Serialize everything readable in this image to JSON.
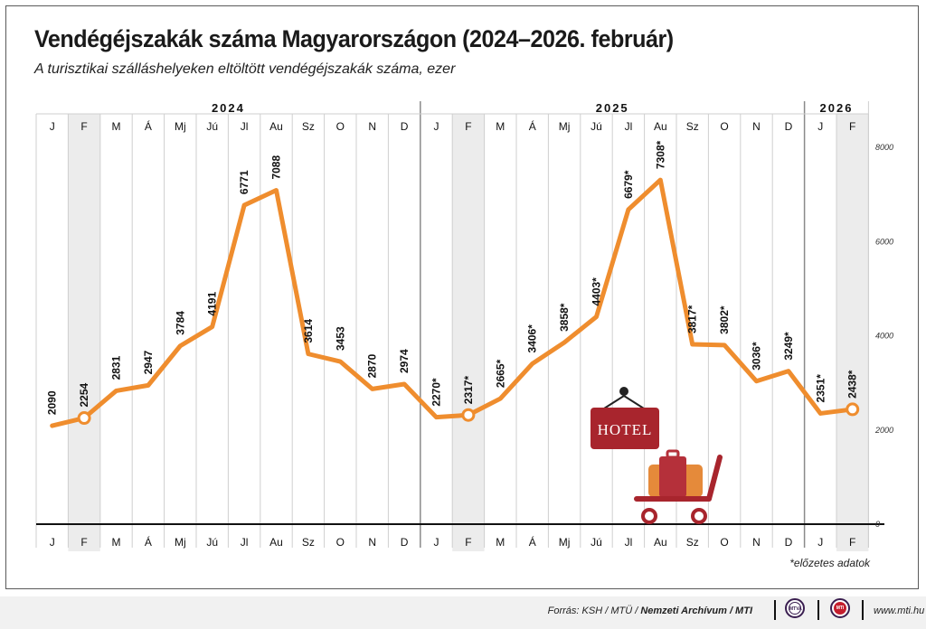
{
  "header": {
    "title": "Vendégéjszakák száma Magyarországon (2024–2026. február)",
    "subtitle": "A turisztikai szálláshelyeken eltöltött vendégéjszakák száma, ezer"
  },
  "note": "*előzetes adatok",
  "footer": {
    "source_prefix": "Forrás: KSH / MTÜ / ",
    "source_bold": "Nemzeti Archívum / MTI",
    "logo1": "MTVA",
    "logo2": "MTI",
    "url": "www.mti.hu"
  },
  "illustration": {
    "sign_text": "HOTEL",
    "colors": {
      "sign": "#a8252d",
      "luggage_orange": "#e58a3a",
      "luggage_red": "#b5303a",
      "cart": "#a8252d"
    }
  },
  "colors": {
    "line": "#ef8d2e",
    "highlight_band": "#ececec",
    "axis": "#111111",
    "grid": "#cfcfcf"
  },
  "chart_data": {
    "type": "line",
    "title": "Vendégéjszakák száma Magyarországon (2024–2026. február)",
    "ylabel": "",
    "ylim": [
      0,
      8000
    ],
    "yticks": [
      "0",
      "2000",
      "4000",
      "6000",
      "8000"
    ],
    "year_labels": [
      "2024",
      "2025",
      "2026"
    ],
    "categories": [
      "J",
      "F",
      "M",
      "Á",
      "Mj",
      "Jú",
      "Jl",
      "Au",
      "Sz",
      "O",
      "N",
      "D",
      "J",
      "F",
      "M",
      "Á",
      "Mj",
      "Jú",
      "Jl",
      "Au",
      "Sz",
      "O",
      "N",
      "D",
      "J",
      "F"
    ],
    "years": [
      2024,
      2024,
      2024,
      2024,
      2024,
      2024,
      2024,
      2024,
      2024,
      2024,
      2024,
      2024,
      2025,
      2025,
      2025,
      2025,
      2025,
      2025,
      2025,
      2025,
      2025,
      2025,
      2025,
      2025,
      2026,
      2026
    ],
    "values": [
      2090,
      2254,
      2831,
      2947,
      3784,
      4191,
      6771,
      7088,
      3614,
      3453,
      2870,
      2974,
      2270,
      2317,
      2665,
      3406,
      3858,
      4403,
      6679,
      7308,
      3817,
      3802,
      3036,
      3249,
      2351,
      2438
    ],
    "labels": [
      "2090",
      "2254",
      "2831",
      "2947",
      "3784",
      "4191",
      "6771",
      "7088",
      "3614",
      "3453",
      "2870",
      "2974",
      "2270*",
      "2317*",
      "2665*",
      "3406*",
      "3858*",
      "4403*",
      "6679*",
      "7308*",
      "3817*",
      "3802*",
      "3036*",
      "3249*",
      "2351*",
      "2438*"
    ],
    "highlighted_indices": [
      1,
      13,
      25
    ],
    "grid": true
  }
}
